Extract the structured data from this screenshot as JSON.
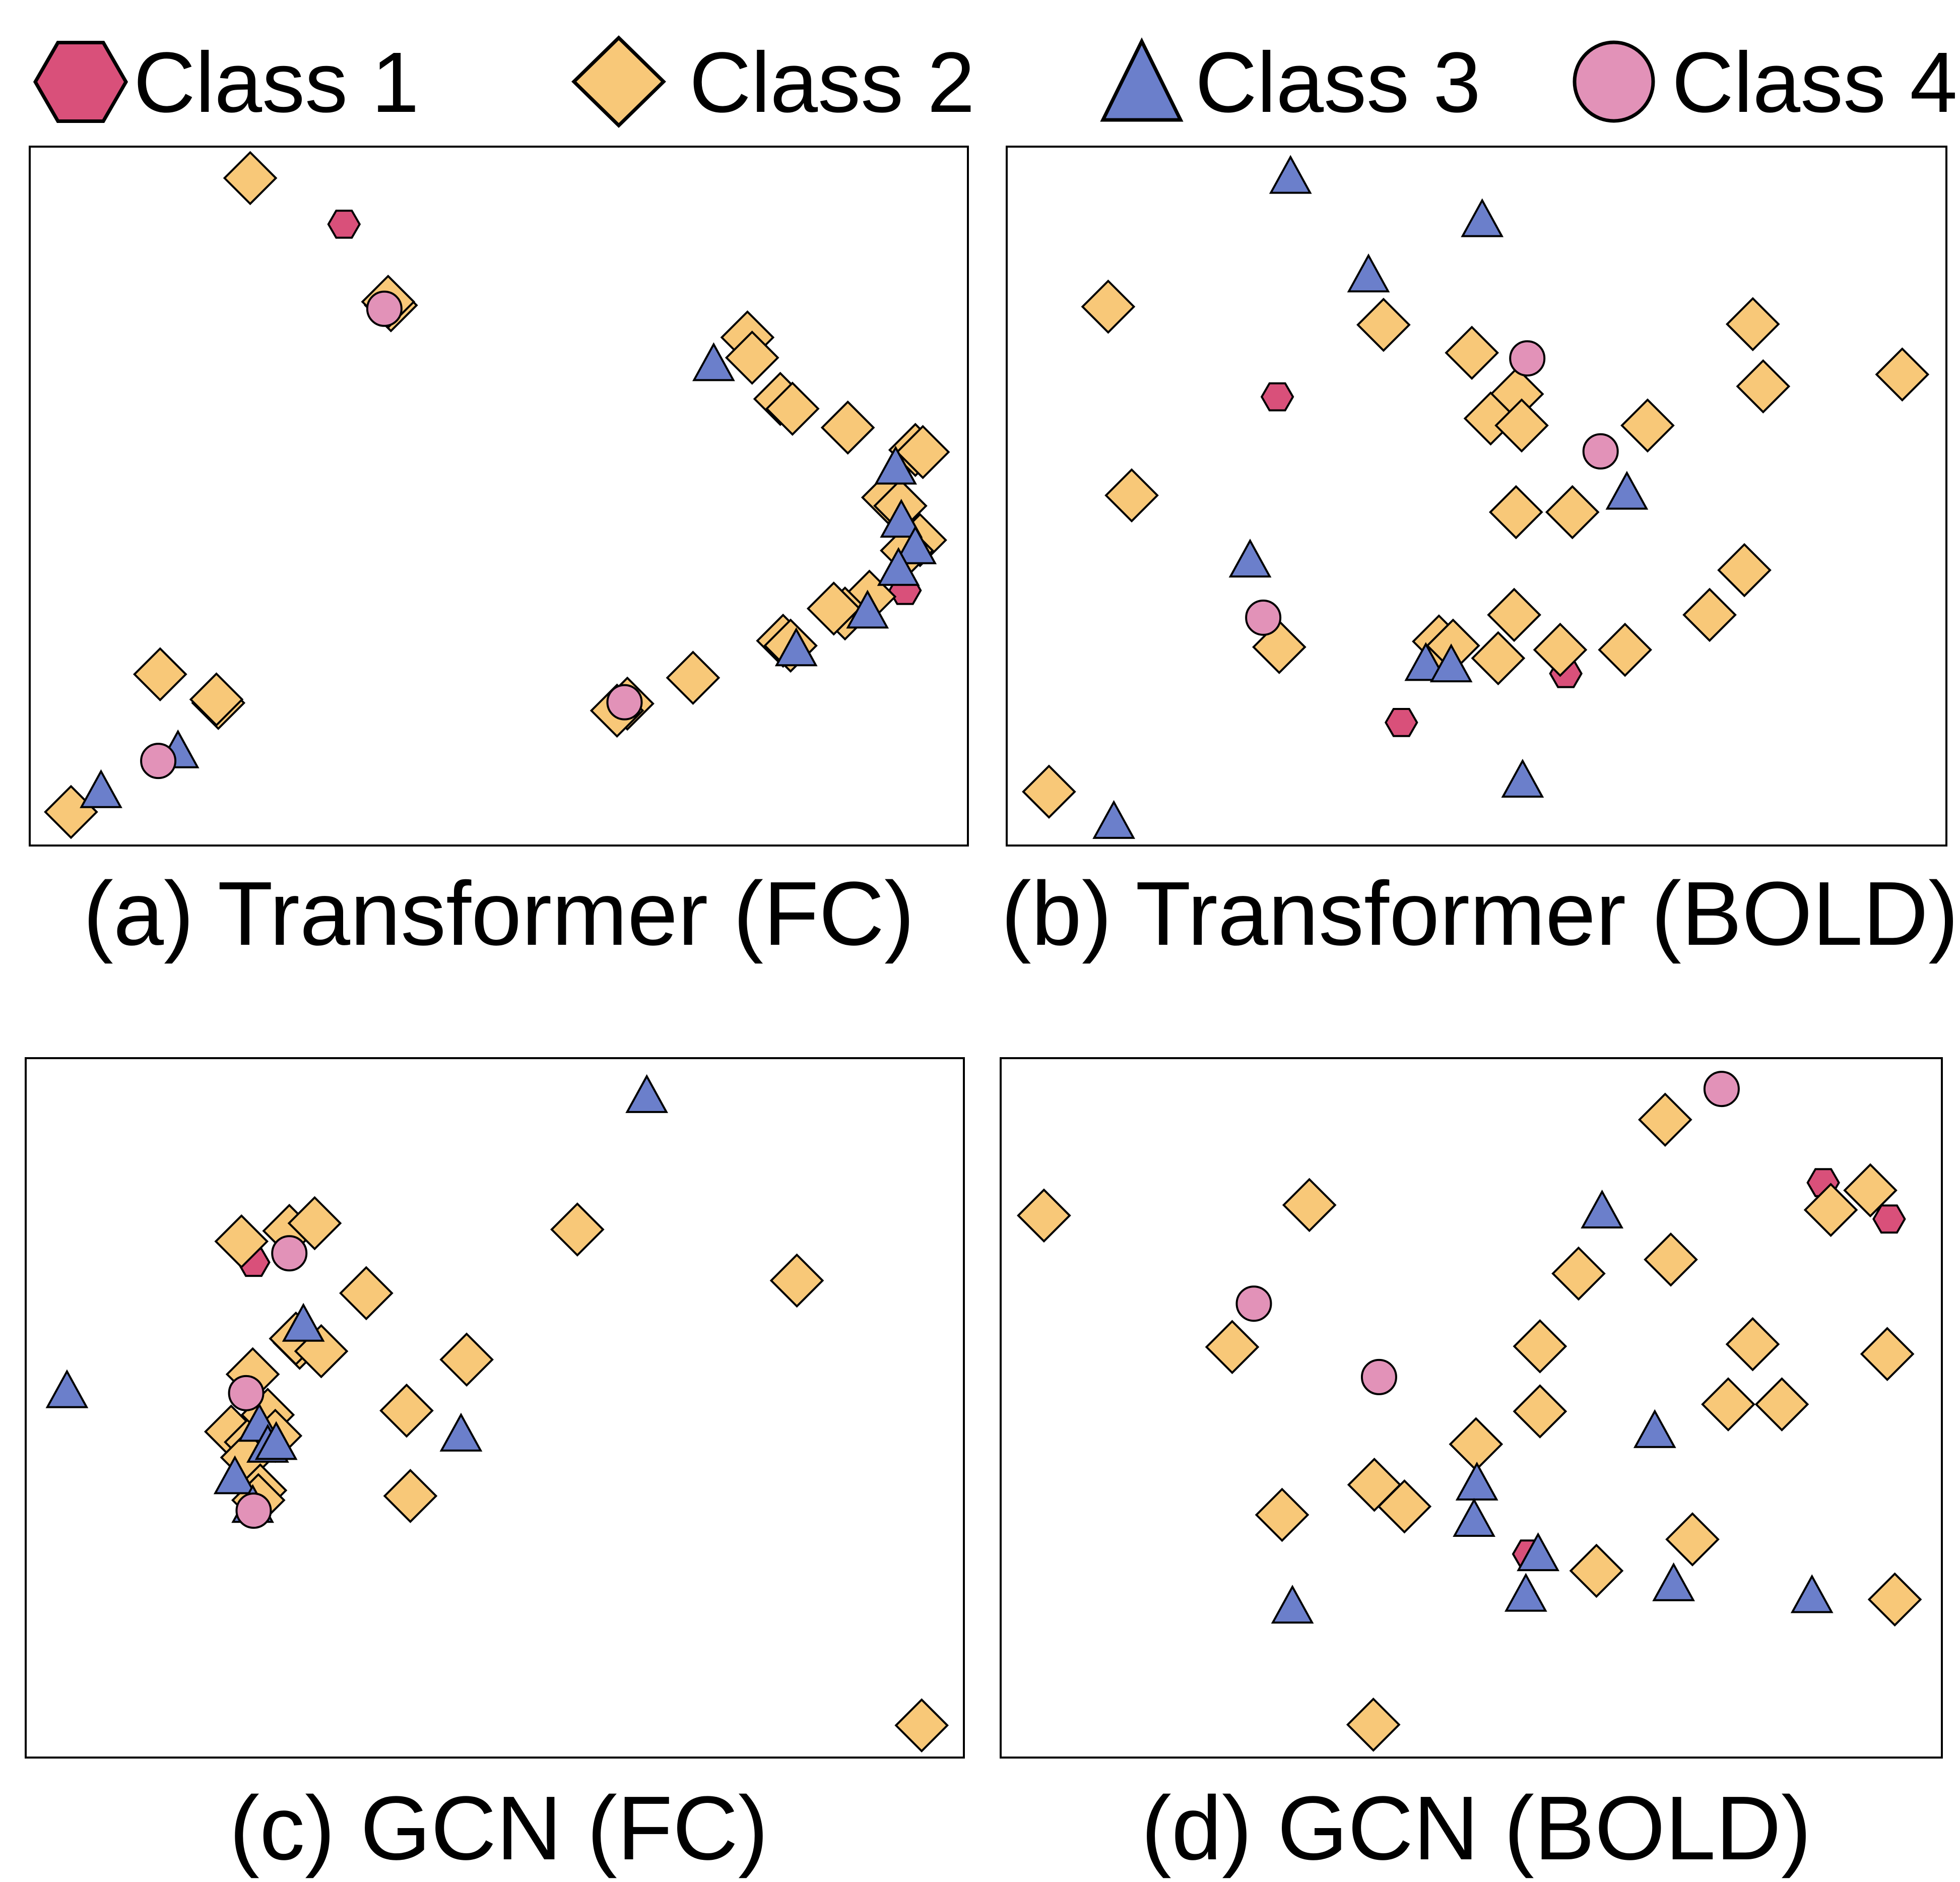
{
  "legend": {
    "items": [
      {
        "label": "Class 1",
        "shape": "hexagon",
        "color": "#D9507A"
      },
      {
        "label": "Class 2",
        "shape": "diamond",
        "color": "#F8C878"
      },
      {
        "label": "Class 3",
        "shape": "triangle",
        "color": "#6B7FCB"
      },
      {
        "label": "Class 4",
        "shape": "circle",
        "color": "#E292B8"
      }
    ]
  },
  "chart_data": [
    {
      "type": "scatter",
      "title": "(a) Transformer (FC)",
      "xlabel": "",
      "ylabel": "",
      "xlim": [
        0,
        100
      ],
      "ylim": [
        0,
        100
      ],
      "series": [
        {
          "name": "Class 1",
          "points": [
            [
              33.5,
              88.9
            ],
            [
              93.3,
              36.5
            ]
          ]
        },
        {
          "name": "Class 2",
          "points": [
            [
              23.5,
              95.5
            ],
            [
              38.5,
              77.3
            ],
            [
              38.2,
              77.8
            ],
            [
              76.5,
              72.7
            ],
            [
              77.0,
              69.8
            ],
            [
              80.0,
              63.9
            ],
            [
              81.3,
              62.5
            ],
            [
              87.2,
              59.8
            ],
            [
              94.4,
              56.6
            ],
            [
              95.2,
              56.3
            ],
            [
              91.5,
              49.8
            ],
            [
              92.8,
              48.6
            ],
            [
              94.9,
              43.7
            ],
            [
              93.5,
              42.2
            ],
            [
              89.5,
              35.6
            ],
            [
              86.9,
              33.2
            ],
            [
              85.7,
              33.9
            ],
            [
              80.3,
              29.3
            ],
            [
              81.1,
              28.6
            ],
            [
              70.7,
              24.0
            ],
            [
              63.7,
              20.3
            ],
            [
              62.6,
              19.3
            ],
            [
              13.9,
              24.5
            ],
            [
              20.1,
              20.4
            ],
            [
              19.9,
              20.9
            ],
            [
              4.4,
              4.8
            ]
          ]
        },
        {
          "name": "Class 3",
          "points": [
            [
              72.9,
              68.9
            ],
            [
              92.3,
              54.1
            ],
            [
              92.9,
              46.5
            ],
            [
              94.4,
              42.7
            ],
            [
              92.6,
              39.6
            ],
            [
              89.3,
              33.5
            ],
            [
              81.7,
              28.1
            ],
            [
              15.8,
              13.5
            ],
            [
              7.6,
              7.8
            ]
          ]
        },
        {
          "name": "Class 4",
          "points": [
            [
              37.8,
              76.8
            ],
            [
              63.4,
              20.5
            ],
            [
              13.7,
              12.1
            ]
          ]
        }
      ]
    },
    {
      "type": "scatter",
      "title": "(b) Transformer (BOLD)",
      "xlabel": "",
      "ylabel": "",
      "xlim": [
        0,
        100
      ],
      "ylim": [
        0,
        100
      ],
      "series": [
        {
          "name": "Class 1",
          "points": [
            [
              28.8,
              64.2
            ],
            [
              59.5,
              24.6
            ],
            [
              42.0,
              17.6
            ]
          ]
        },
        {
          "name": "Class 2",
          "points": [
            [
              10.8,
              77.1
            ],
            [
              40.1,
              74.5
            ],
            [
              49.5,
              70.5
            ],
            [
              54.3,
              64.6
            ],
            [
              51.5,
              61.1
            ],
            [
              54.8,
              60.1
            ],
            [
              68.2,
              60.1
            ],
            [
              79.4,
              74.6
            ],
            [
              80.5,
              65.7
            ],
            [
              95.3,
              67.4
            ],
            [
              13.3,
              50.1
            ],
            [
              54.2,
              47.7
            ],
            [
              60.2,
              47.7
            ],
            [
              54.0,
              33.0
            ],
            [
              46.0,
              29.2
            ],
            [
              47.5,
              28.6
            ],
            [
              52.3,
              26.8
            ],
            [
              58.9,
              28.0
            ],
            [
              65.8,
              28.0
            ],
            [
              74.8,
              33.0
            ],
            [
              78.5,
              39.4
            ],
            [
              29.0,
              28.4
            ],
            [
              4.5,
              7.7
            ]
          ]
        },
        {
          "name": "Class 3",
          "points": [
            [
              30.2,
              95.7
            ],
            [
              50.6,
              89.5
            ],
            [
              38.5,
              81.6
            ],
            [
              66.0,
              50.5
            ],
            [
              25.9,
              40.8
            ],
            [
              44.6,
              26.0
            ],
            [
              47.3,
              25.8
            ],
            [
              54.9,
              9.3
            ],
            [
              11.4,
              3.4
            ]
          ]
        },
        {
          "name": "Class 4",
          "points": [
            [
              55.4,
              69.7
            ],
            [
              63.2,
              56.4
            ],
            [
              27.3,
              32.6
            ]
          ]
        }
      ]
    },
    {
      "type": "scatter",
      "title": "(c) GCN (FC)",
      "xlabel": "",
      "ylabel": "",
      "xlim": [
        0,
        100
      ],
      "ylim": [
        0,
        100
      ],
      "series": [
        {
          "name": "Class 1",
          "points": [
            [
              24.3,
              70.8
            ]
          ]
        },
        {
          "name": "Class 2",
          "points": [
            [
              23.0,
              73.8
            ],
            [
              28.1,
              75.3
            ],
            [
              30.8,
              76.4
            ],
            [
              36.3,
              66.4
            ],
            [
              58.8,
              75.5
            ],
            [
              82.2,
              68.2
            ],
            [
              24.2,
              54.8
            ],
            [
              29.2,
              59.3
            ],
            [
              28.8,
              59.9
            ],
            [
              31.5,
              58.1
            ],
            [
              47.0,
              56.9
            ],
            [
              40.6,
              49.6
            ],
            [
              21.9,
              46.6
            ],
            [
              24.0,
              45.1
            ],
            [
              25.8,
              49.0
            ],
            [
              26.6,
              46.0
            ],
            [
              23.6,
              42.9
            ],
            [
              25.0,
              38.2
            ],
            [
              24.8,
              36.8
            ],
            [
              41.0,
              37.4
            ],
            [
              95.5,
              4.6
            ]
          ]
        },
        {
          "name": "Class 3",
          "points": [
            [
              66.2,
              94.6
            ],
            [
              29.6,
              61.9
            ],
            [
              4.4,
              52.4
            ],
            [
              46.4,
              46.2
            ],
            [
              24.9,
              47.6
            ],
            [
              25.8,
              44.6
            ],
            [
              26.7,
              45.0
            ],
            [
              22.3,
              40.1
            ],
            [
              24.2,
              36.0
            ]
          ]
        },
        {
          "name": "Class 4",
          "points": [
            [
              28.1,
              72.1
            ],
            [
              23.5,
              52.1
            ],
            [
              24.3,
              35.3
            ]
          ]
        }
      ]
    },
    {
      "type": "scatter",
      "title": "(d) GCN (BOLD)",
      "xlabel": "",
      "ylabel": "",
      "xlim": [
        0,
        100
      ],
      "ylim": [
        0,
        100
      ],
      "series": [
        {
          "name": "Class 1",
          "points": [
            [
              87.4,
              82.2
            ],
            [
              94.4,
              77.0
            ],
            [
              56.1,
              29.1
            ]
          ]
        },
        {
          "name": "Class 2",
          "points": [
            [
              4.6,
              77.5
            ],
            [
              32.8,
              79.0
            ],
            [
              70.6,
              91.2
            ],
            [
              92.4,
              81.1
            ],
            [
              88.2,
              78.3
            ],
            [
              61.4,
              69.2
            ],
            [
              71.2,
              71.2
            ],
            [
              24.6,
              58.7
            ],
            [
              57.3,
              58.8
            ],
            [
              79.9,
              59.1
            ],
            [
              94.2,
              57.7
            ],
            [
              57.3,
              49.5
            ],
            [
              77.3,
              50.5
            ],
            [
              83.0,
              50.5
            ],
            [
              50.5,
              44.8
            ],
            [
              39.7,
              39.0
            ],
            [
              42.9,
              35.9
            ],
            [
              29.9,
              34.7
            ],
            [
              73.5,
              31.2
            ],
            [
              63.3,
              26.7
            ],
            [
              95.0,
              22.6
            ],
            [
              39.6,
              4.7
            ]
          ]
        },
        {
          "name": "Class 3",
          "points": [
            [
              63.9,
              78.1
            ],
            [
              69.5,
              46.7
            ],
            [
              50.6,
              39.2
            ],
            [
              50.3,
              34.0
            ],
            [
              57.1,
              29.1
            ],
            [
              55.8,
              23.3
            ],
            [
              71.5,
              24.8
            ],
            [
              86.2,
              23.1
            ],
            [
              31.0,
              21.6
            ]
          ]
        },
        {
          "name": "Class 4",
          "points": [
            [
              76.6,
              95.6
            ],
            [
              26.9,
              64.9
            ],
            [
              40.2,
              54.4
            ]
          ]
        }
      ]
    }
  ]
}
